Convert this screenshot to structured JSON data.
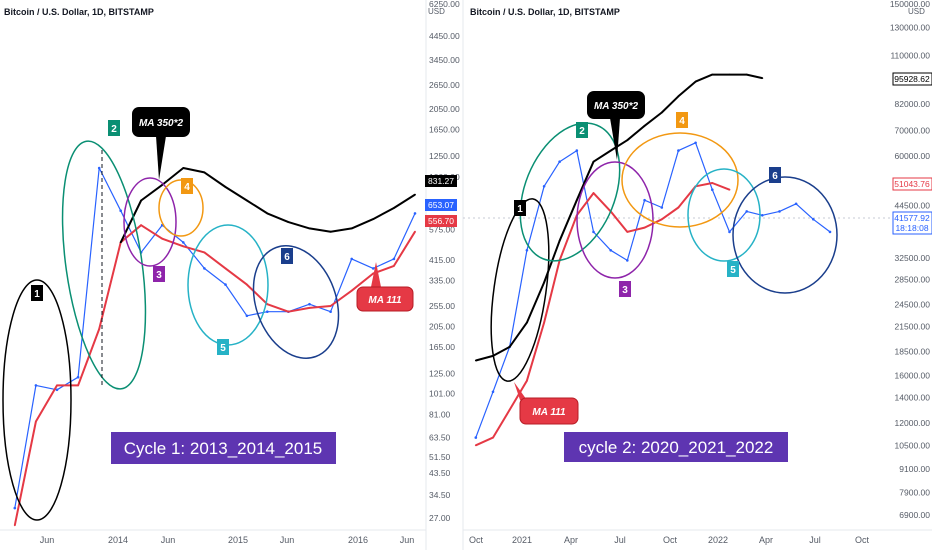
{
  "chart_data": [
    {
      "type": "line",
      "panel": "left",
      "title": "Bitcoin / U.S. Dollar, 1D, BITSTAMP",
      "currency": "USD",
      "scale": "log",
      "yticks": [
        "6250.00",
        "4450.00",
        "3450.00",
        "2650.00",
        "2050.00",
        "1650.00",
        "1250.00",
        "1000.00",
        "755.00",
        "575.00",
        "415.00",
        "335.00",
        "255.00",
        "205.00",
        "165.00",
        "125.00",
        "101.00",
        "81.00",
        "63.50",
        "51.50",
        "43.50",
        "34.50",
        "27.00"
      ],
      "xticks": [
        "Jun",
        "2014",
        "Jun",
        "2015",
        "Jun",
        "2016",
        "Jun"
      ],
      "x": [
        "2013-04",
        "2013-06",
        "2013-08",
        "2013-10",
        "2013-12",
        "2014-02",
        "2014-04",
        "2014-06",
        "2014-08",
        "2014-10",
        "2014-12",
        "2015-02",
        "2015-04",
        "2015-06",
        "2015-08",
        "2015-10",
        "2015-12",
        "2016-02",
        "2016-04",
        "2016-06"
      ],
      "series": [
        {
          "name": "",
          "color": "#2962ff",
          "values": [
            30,
            110,
            105,
            120,
            1100,
            700,
            450,
            600,
            500,
            380,
            320,
            230,
            240,
            240,
            260,
            240,
            420,
            380,
            420,
            680
          ]
        },
        {
          "name": "MA 111",
          "color": "#e53945",
          "values": [
            25,
            75,
            110,
            110,
            200,
            500,
            600,
            520,
            480,
            450,
            380,
            320,
            260,
            240,
            250,
            255,
            300,
            360,
            390,
            560
          ]
        },
        {
          "name": "MA 350*2",
          "color": "#000000",
          "values": [
            null,
            null,
            null,
            null,
            null,
            500,
            780,
            920,
            1100,
            1050,
            900,
            780,
            680,
            620,
            580,
            560,
            580,
            640,
            720,
            830
          ]
        }
      ],
      "price_labels": [
        {
          "text": "831.27",
          "bg": "#000000",
          "fg": "#ffffff"
        },
        {
          "text": "653.07",
          "bg": "#2962ff",
          "fg": "#ffffff"
        },
        {
          "text": "556.70",
          "bg": "#e53945",
          "fg": "#ffffff"
        }
      ],
      "annotations": [
        {
          "text": "MA 350*2",
          "bg": "#000000"
        },
        {
          "text": "MA 111",
          "bg": "#e53945"
        },
        {
          "text": "Cycle 1: 2013_2014_2015",
          "bg": "#5e35b1"
        }
      ],
      "cycle_labels": [
        {
          "text": "1",
          "color": "#000000"
        },
        {
          "text": "2",
          "color": "#0a8f73"
        },
        {
          "text": "3",
          "color": "#8e24aa"
        },
        {
          "text": "4",
          "color": "#f29812"
        },
        {
          "text": "5",
          "color": "#26b2c6"
        },
        {
          "text": "6",
          "color": "#1a3e8c"
        }
      ]
    },
    {
      "type": "line",
      "panel": "right",
      "title": "Bitcoin / U.S. Dollar, 1D, BITSTAMP",
      "currency": "USD",
      "scale": "log",
      "yticks": [
        "150000.00",
        "130000.00",
        "110000.00",
        "82000.00",
        "70000.00",
        "60000.00",
        "44500.00",
        "32500.00",
        "28500.00",
        "24500.00",
        "21500.00",
        "18500.00",
        "16000.00",
        "14000.00",
        "12000.00",
        "10500.00",
        "9100.00",
        "7900.00",
        "6900.00"
      ],
      "xticks": [
        "Oct",
        "2021",
        "Apr",
        "Jul",
        "Oct",
        "2022",
        "Apr",
        "Jul",
        "Oct"
      ],
      "x": [
        "2020-10",
        "2020-11",
        "2020-12",
        "2021-01",
        "2021-02",
        "2021-03",
        "2021-04",
        "2021-05",
        "2021-06",
        "2021-07",
        "2021-08",
        "2021-09",
        "2021-10",
        "2021-11",
        "2021-12",
        "2022-01",
        "2022-02",
        "2022-03",
        "2022-04",
        "2022-05",
        "2022-06",
        "2022-07"
      ],
      "series": [
        {
          "name": "",
          "color": "#2962ff",
          "values": [
            11000,
            14500,
            19000,
            34000,
            50000,
            58000,
            62000,
            38000,
            34000,
            32000,
            46000,
            44000,
            62000,
            65000,
            49000,
            38000,
            43000,
            42000,
            43000,
            45000,
            41000,
            38000
          ]
        },
        {
          "name": "MA 111",
          "color": "#e53945",
          "values": [
            10500,
            11000,
            13000,
            15500,
            22000,
            32000,
            42000,
            48000,
            43000,
            38000,
            39000,
            41000,
            44000,
            50000,
            51000,
            49000,
            null,
            null,
            null,
            null,
            null,
            null
          ]
        },
        {
          "name": "MA 350*2",
          "color": "#000000",
          "values": [
            17500,
            18000,
            19000,
            22000,
            28000,
            36000,
            46000,
            58000,
            62000,
            66000,
            72000,
            78000,
            86000,
            94000,
            98000,
            98000,
            98000,
            96000,
            null,
            null,
            null,
            null
          ]
        }
      ],
      "price_labels": [
        {
          "text": "95928.62",
          "bg": "#ffffff",
          "fg": "#000000",
          "border": "#000000"
        },
        {
          "text": "51043.76",
          "bg": "#ffffff",
          "fg": "#e53945",
          "border": "#e53945"
        },
        {
          "text": "41577.92",
          "bg": "#ffffff",
          "fg": "#2962ff",
          "border": "#2962ff"
        },
        {
          "text": "18:18:08",
          "bg": "#ffffff",
          "fg": "#2962ff",
          "border": "#2962ff"
        }
      ],
      "annotations": [
        {
          "text": "MA 350*2",
          "bg": "#000000"
        },
        {
          "text": "MA 111",
          "bg": "#e53945"
        },
        {
          "text": "cycle 2: 2020_2021_2022",
          "bg": "#5e35b1"
        }
      ],
      "cycle_labels": [
        {
          "text": "1",
          "color": "#000000"
        },
        {
          "text": "2",
          "color": "#0a8f73"
        },
        {
          "text": "3",
          "color": "#8e24aa"
        },
        {
          "text": "4",
          "color": "#f29812"
        },
        {
          "text": "5",
          "color": "#26b2c6"
        },
        {
          "text": "6",
          "color": "#1a3e8c"
        }
      ]
    }
  ]
}
